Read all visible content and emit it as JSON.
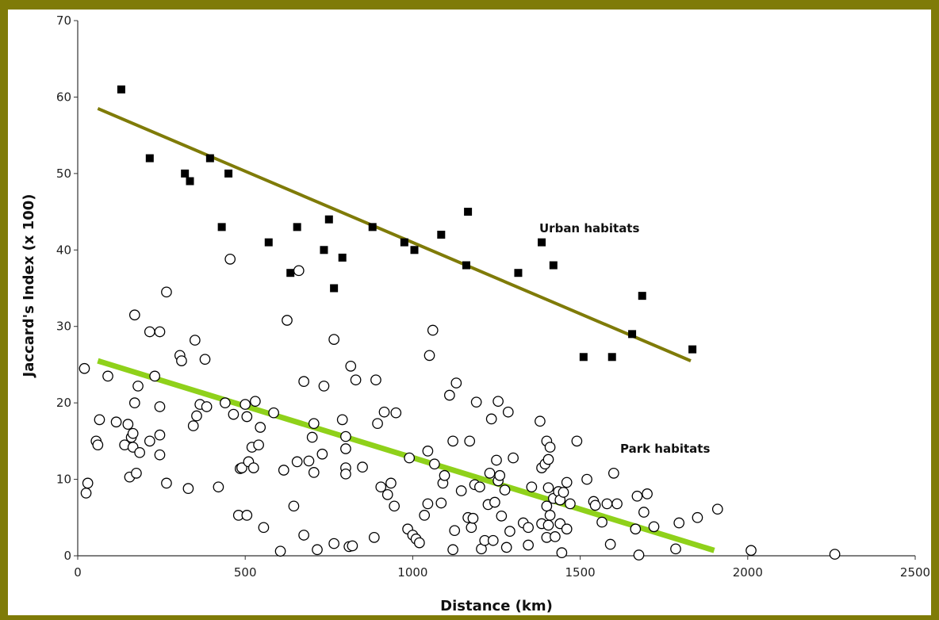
{
  "chart_data": {
    "type": "scatter",
    "xlabel": "Distance (km)",
    "ylabel": "Jaccard's Index (x 100)",
    "xlim": [
      0,
      2500
    ],
    "ylim": [
      0,
      70
    ],
    "xticks": [
      0,
      500,
      1000,
      1500,
      2000,
      2500
    ],
    "yticks": [
      0,
      10,
      20,
      30,
      40,
      50,
      60,
      70
    ],
    "grid": false,
    "annotations": [
      "Urban habitats",
      "Park habitats"
    ],
    "series": [
      {
        "marker": "filled-square",
        "color": "#000000",
        "points": [
          [
            130,
            61
          ],
          [
            215,
            52
          ],
          [
            320,
            50
          ],
          [
            335,
            49
          ],
          [
            395,
            52
          ],
          [
            430,
            43
          ],
          [
            450,
            50
          ],
          [
            570,
            41
          ],
          [
            635,
            37
          ],
          [
            655,
            43
          ],
          [
            735,
            40
          ],
          [
            750,
            44
          ],
          [
            765,
            35
          ],
          [
            790,
            39
          ],
          [
            880,
            43
          ],
          [
            975,
            41
          ],
          [
            1005,
            40
          ],
          [
            1085,
            42
          ],
          [
            1160,
            38
          ],
          [
            1165,
            45
          ],
          [
            1315,
            37
          ],
          [
            1385,
            41
          ],
          [
            1420,
            38
          ],
          [
            1510,
            26
          ],
          [
            1595,
            26
          ],
          [
            1655,
            29
          ],
          [
            1685,
            34
          ],
          [
            1835,
            27
          ]
        ],
        "trend": {
          "color": "#7f7b08",
          "x": [
            60,
            1830
          ],
          "y": [
            58.5,
            25.5
          ]
        }
      },
      {
        "marker": "open-circle",
        "color": "#000000",
        "points": [
          [
            20,
            24.5
          ],
          [
            25,
            8.2
          ],
          [
            30,
            9.5
          ],
          [
            55,
            15
          ],
          [
            60,
            14.5
          ],
          [
            65,
            17.8
          ],
          [
            90,
            23.5
          ],
          [
            115,
            17.5
          ],
          [
            140,
            14.5
          ],
          [
            150,
            17.2
          ],
          [
            155,
            10.3
          ],
          [
            160,
            15.5
          ],
          [
            165,
            16
          ],
          [
            165,
            14.2
          ],
          [
            170,
            31.5
          ],
          [
            170,
            20
          ],
          [
            175,
            10.8
          ],
          [
            180,
            22.2
          ],
          [
            185,
            13.5
          ],
          [
            215,
            29.3
          ],
          [
            215,
            15
          ],
          [
            230,
            23.5
          ],
          [
            245,
            29.3
          ],
          [
            245,
            19.5
          ],
          [
            245,
            15.8
          ],
          [
            245,
            13.2
          ],
          [
            265,
            34.5
          ],
          [
            265,
            9.5
          ],
          [
            305,
            26.2
          ],
          [
            310,
            25.5
          ],
          [
            330,
            8.8
          ],
          [
            345,
            17
          ],
          [
            350,
            28.2
          ],
          [
            355,
            18.3
          ],
          [
            365,
            19.8
          ],
          [
            380,
            25.7
          ],
          [
            385,
            19.5
          ],
          [
            420,
            9
          ],
          [
            440,
            20
          ],
          [
            455,
            38.8
          ],
          [
            465,
            18.5
          ],
          [
            480,
            5.3
          ],
          [
            485,
            11.4
          ],
          [
            490,
            11.5
          ],
          [
            500,
            19.8
          ],
          [
            505,
            18.2
          ],
          [
            505,
            5.3
          ],
          [
            510,
            12.3
          ],
          [
            520,
            14.2
          ],
          [
            525,
            11.5
          ],
          [
            530,
            20.2
          ],
          [
            540,
            14.5
          ],
          [
            545,
            16.8
          ],
          [
            555,
            3.7
          ],
          [
            585,
            18.7
          ],
          [
            605,
            0.6
          ],
          [
            615,
            11.2
          ],
          [
            625,
            30.8
          ],
          [
            645,
            6.5
          ],
          [
            655,
            12.3
          ],
          [
            660,
            37.3
          ],
          [
            675,
            2.7
          ],
          [
            675,
            22.8
          ],
          [
            690,
            12.4
          ],
          [
            700,
            15.5
          ],
          [
            705,
            17.3
          ],
          [
            705,
            10.9
          ],
          [
            715,
            0.8
          ],
          [
            730,
            13.3
          ],
          [
            735,
            22.2
          ],
          [
            765,
            1.6
          ],
          [
            765,
            28.3
          ],
          [
            790,
            17.8
          ],
          [
            800,
            14
          ],
          [
            800,
            11.5
          ],
          [
            800,
            10.7
          ],
          [
            800,
            15.6
          ],
          [
            810,
            1.2
          ],
          [
            815,
            24.8
          ],
          [
            820,
            1.3
          ],
          [
            830,
            23
          ],
          [
            850,
            11.6
          ],
          [
            885,
            2.4
          ],
          [
            890,
            23
          ],
          [
            895,
            17.3
          ],
          [
            905,
            9
          ],
          [
            915,
            18.8
          ],
          [
            925,
            8
          ],
          [
            935,
            9.5
          ],
          [
            945,
            6.5
          ],
          [
            950,
            18.7
          ],
          [
            985,
            3.5
          ],
          [
            990,
            12.8
          ],
          [
            1000,
            2.7
          ],
          [
            1010,
            2.2
          ],
          [
            1020,
            1.7
          ],
          [
            1035,
            5.3
          ],
          [
            1045,
            6.8
          ],
          [
            1045,
            13.7
          ],
          [
            1050,
            26.2
          ],
          [
            1060,
            29.5
          ],
          [
            1065,
            12
          ],
          [
            1085,
            6.9
          ],
          [
            1090,
            9.5
          ],
          [
            1095,
            10.5
          ],
          [
            1110,
            21
          ],
          [
            1120,
            0.8
          ],
          [
            1120,
            15
          ],
          [
            1125,
            3.3
          ],
          [
            1130,
            22.6
          ],
          [
            1145,
            8.5
          ],
          [
            1165,
            5
          ],
          [
            1170,
            15
          ],
          [
            1175,
            3.7
          ],
          [
            1180,
            4.9
          ],
          [
            1185,
            9.3
          ],
          [
            1190,
            20.1
          ],
          [
            1200,
            9
          ],
          [
            1205,
            0.9
          ],
          [
            1215,
            2
          ],
          [
            1225,
            6.7
          ],
          [
            1230,
            10.8
          ],
          [
            1235,
            17.9
          ],
          [
            1240,
            2
          ],
          [
            1245,
            7
          ],
          [
            1250,
            12.5
          ],
          [
            1255,
            20.2
          ],
          [
            1255,
            9.8
          ],
          [
            1260,
            10.5
          ],
          [
            1265,
            5.2
          ],
          [
            1275,
            8.6
          ],
          [
            1280,
            1.1
          ],
          [
            1285,
            18.8
          ],
          [
            1290,
            3.2
          ],
          [
            1300,
            12.8
          ],
          [
            1330,
            4.3
          ],
          [
            1345,
            3.7
          ],
          [
            1345,
            1.4
          ],
          [
            1355,
            9
          ],
          [
            1380,
            17.6
          ],
          [
            1385,
            4.2
          ],
          [
            1385,
            11.5
          ],
          [
            1395,
            12
          ],
          [
            1400,
            6.5
          ],
          [
            1400,
            2.4
          ],
          [
            1400,
            15
          ],
          [
            1405,
            4
          ],
          [
            1405,
            12.6
          ],
          [
            1405,
            8.9
          ],
          [
            1410,
            14.2
          ],
          [
            1410,
            5.3
          ],
          [
            1420,
            7.5
          ],
          [
            1425,
            2.5
          ],
          [
            1435,
            8.4
          ],
          [
            1440,
            7.3
          ],
          [
            1440,
            4.2
          ],
          [
            1445,
            0.4
          ],
          [
            1450,
            8.3
          ],
          [
            1460,
            9.6
          ],
          [
            1460,
            3.5
          ],
          [
            1470,
            6.8
          ],
          [
            1490,
            15
          ],
          [
            1520,
            10
          ],
          [
            1540,
            7.1
          ],
          [
            1545,
            6.6
          ],
          [
            1565,
            4.4
          ],
          [
            1580,
            6.8
          ],
          [
            1590,
            1.5
          ],
          [
            1600,
            10.8
          ],
          [
            1610,
            6.8
          ],
          [
            1665,
            3.5
          ],
          [
            1670,
            7.8
          ],
          [
            1675,
            0.1
          ],
          [
            1690,
            5.7
          ],
          [
            1700,
            8.1
          ],
          [
            1720,
            3.8
          ],
          [
            1785,
            0.9
          ],
          [
            1795,
            4.3
          ],
          [
            1850,
            5
          ],
          [
            1910,
            6.1
          ],
          [
            2010,
            0.7
          ],
          [
            2260,
            0.2
          ]
        ],
        "trend": {
          "color": "#8fd11a",
          "x": [
            60,
            1900
          ],
          "y": [
            25.5,
            0.7
          ]
        }
      }
    ]
  }
}
